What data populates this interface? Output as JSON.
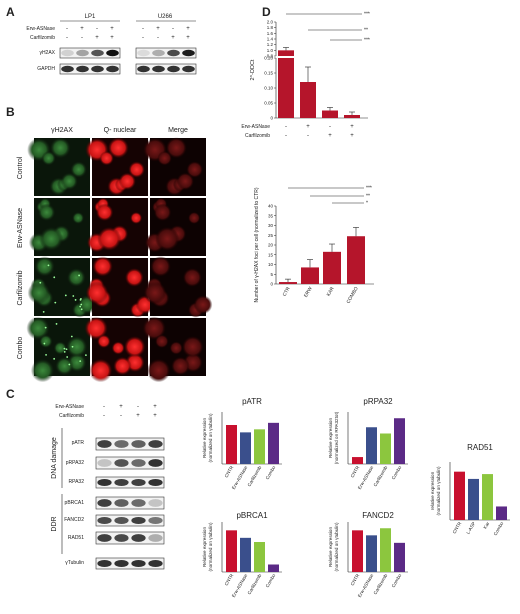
{
  "panels": {
    "A": {
      "letter": "A",
      "cell_lines": [
        "LP1",
        "U266"
      ],
      "row_labels": [
        "Erw-ASNase",
        "Carfilzomib"
      ],
      "erw_signs": [
        "-",
        "+",
        "-",
        "+"
      ],
      "carf_signs": [
        "-",
        "-",
        "+",
        "+"
      ],
      "blot_labels": [
        "γH2AX",
        "GAPDH"
      ]
    },
    "B": {
      "letter": "B",
      "col_labels": [
        "γH2AX",
        "Q- nuclear",
        "Merge"
      ],
      "row_labels": [
        "Control",
        "Erw-ASNase",
        "Carfilzomib",
        "Combo"
      ]
    },
    "C": {
      "letter": "C",
      "row_labels": [
        "Erw-ASNase",
        "Carfilzomib"
      ],
      "erw_signs": [
        "-",
        "+",
        "-",
        "+"
      ],
      "carf_signs": [
        "-",
        "-",
        "+",
        "+"
      ],
      "groups": [
        "DNA damage",
        "DDR"
      ],
      "blot_labels": [
        "pATR",
        "pRPA32",
        "RPA32",
        "pBRCA1",
        "FANCD2",
        "RAD51",
        "γTubulin"
      ]
    },
    "D": {
      "letter": "D",
      "signs_erw": [
        "-",
        "+",
        "-",
        "+"
      ],
      "signs_carf": [
        "-",
        "-",
        "+",
        "+"
      ],
      "row_labels": [
        "Erw-ASNase",
        "Carfilzomib"
      ]
    }
  },
  "chart_data": [
    {
      "id": "d-top",
      "type": "bar",
      "ylabel": "2^-DDCt",
      "categories": [
        "-/-",
        "+/-",
        "-/+",
        "+/+"
      ],
      "values": [
        1.0,
        0.12,
        0.025,
        0.01
      ],
      "errors": [
        0.1,
        0.05,
        0.01,
        0.01
      ],
      "yticks": [
        "0",
        "0.05",
        "0.10",
        "0.15",
        "0.20",
        "0.8",
        "1.0",
        "1.2",
        "1.4",
        "1.6",
        "1.8",
        "2.0"
      ],
      "axis_break": true,
      "significance": [
        "***",
        "**",
        "***"
      ],
      "color": "#b5152b"
    },
    {
      "id": "d-bottom",
      "type": "bar",
      "ylabel": "Number of γ-H2AX foci per cell (normalized to CTR)",
      "categories": [
        "CTR",
        "ERW",
        "KAR",
        "COMBO"
      ],
      "values": [
        1,
        8.5,
        16.5,
        24.5
      ],
      "errors": [
        1.5,
        4,
        4,
        4.5
      ],
      "ylim": [
        0,
        40
      ],
      "yticks": [
        "0",
        "5",
        "10",
        "15",
        "20",
        "25",
        "30",
        "35",
        "40"
      ],
      "significance": [
        "***",
        "**",
        "*"
      ],
      "color": "#b5152b"
    },
    {
      "id": "patr",
      "type": "bar",
      "title": "pATR",
      "ylabel": "Relative expression (normalized on γtubulin)",
      "categories": [
        "CNTR",
        "Erw-ASNase",
        "Carfilzomib",
        "Combo"
      ],
      "values": [
        90,
        73,
        80,
        95
      ],
      "colors": [
        "#c8102e",
        "#3a4f8c",
        "#8cc63e",
        "#5b2a86"
      ]
    },
    {
      "id": "prpa32",
      "type": "bar",
      "title": "pRPA32",
      "ylabel": "Relative expression (normalized on RPA32tot)",
      "categories": [
        "CNTR",
        "Erw-ASNase",
        "Carfilzomib",
        "Combo"
      ],
      "values": [
        100,
        530,
        440,
        660
      ],
      "colors": [
        "#c8102e",
        "#3a4f8c",
        "#8cc63e",
        "#5b2a86"
      ]
    },
    {
      "id": "pbrca1",
      "type": "bar",
      "title": "pBRCA1",
      "ylabel": "Relative expression (normalized on γtubulin)",
      "categories": [
        "CNTR",
        "Erw-ASNase",
        "Carfilzomib",
        "Combo"
      ],
      "values": [
        100,
        82,
        72,
        18
      ],
      "colors": [
        "#c8102e",
        "#3a4f8c",
        "#8cc63e",
        "#5b2a86"
      ]
    },
    {
      "id": "fancd2",
      "type": "bar",
      "title": "FANCD2",
      "ylabel": "Relative expression (normalized on γtubulin)",
      "categories": [
        "CNTR",
        "Erw-ASNase",
        "Carfilzomib",
        "Combo"
      ],
      "values": [
        100,
        88,
        105,
        70
      ],
      "colors": [
        "#c8102e",
        "#3a4f8c",
        "#8cc63e",
        "#5b2a86"
      ]
    },
    {
      "id": "rad51",
      "type": "bar",
      "title": "RAD51",
      "ylabel": "relative expression (normalized on γtubulin)",
      "categories": [
        "CNTR",
        "L-ASP",
        "Kar",
        "Combo"
      ],
      "values": [
        100,
        85,
        95,
        28
      ],
      "colors": [
        "#c8102e",
        "#3a4f8c",
        "#8cc63e",
        "#5b2a86"
      ]
    }
  ]
}
